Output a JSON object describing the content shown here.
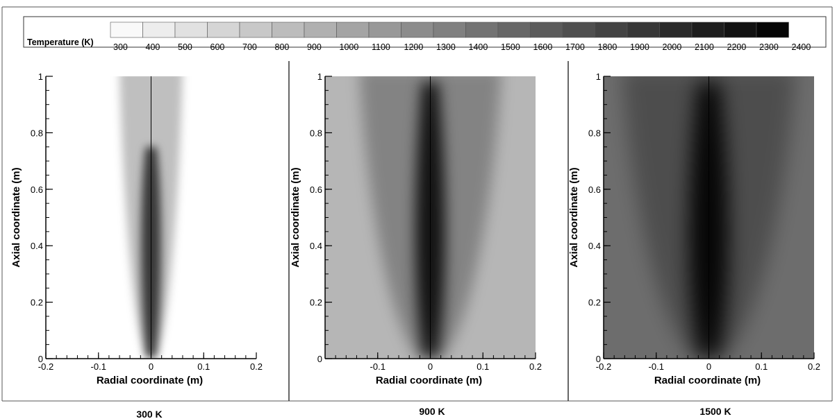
{
  "chart_data": {
    "type": "heatmap",
    "colorbar": {
      "title": "Temperature (K)",
      "range": [
        300,
        2400
      ],
      "ticks": [
        300,
        400,
        500,
        600,
        700,
        800,
        900,
        1000,
        1100,
        1200,
        1300,
        1400,
        1500,
        1600,
        1700,
        1800,
        1900,
        2000,
        2100,
        2200,
        2300,
        2400
      ],
      "colormap": "grayscale, white (low) to black (high)",
      "color_low": "#ffffff",
      "color_high": "#000000"
    },
    "panels": [
      {
        "label": "300 K",
        "xlabel": "Radial coordinate (m)",
        "ylabel": "Axial coordinate (m)",
        "xlim": [
          -0.2,
          0.2
        ],
        "ylim": [
          0,
          1
        ],
        "xticks": [
          -0.2,
          -0.1,
          0,
          0.1,
          0.2
        ],
        "yticks": [
          0,
          0.2,
          0.4,
          0.6,
          0.8,
          1
        ],
        "xtick_labels": [
          "-0.2",
          "-0.1",
          "0",
          "0.1",
          "0.2"
        ],
        "ytick_labels": [
          "0",
          "0.2",
          "0.4",
          "0.6",
          "0.8",
          "1"
        ],
        "ambient_temperature_K": 300,
        "peak_temperature_K": 1900,
        "plume_core_halfwidth_m": 0.02,
        "plume_outer_halfwidth_m": 0.04
      },
      {
        "label": "900 K",
        "xlabel": "Radial coordinate (m)",
        "ylabel": "Axial coordinate (m)",
        "xlim": [
          -0.2,
          0.2
        ],
        "ylim": [
          0,
          1
        ],
        "xticks": [
          -0.1,
          0,
          0.1,
          0.2
        ],
        "yticks": [
          0,
          0.2,
          0.4,
          0.6,
          0.8,
          1
        ],
        "xtick_labels": [
          "-0.1",
          "0",
          "0.1",
          "0.2"
        ],
        "ytick_labels": [
          "0",
          "0.2",
          "0.4",
          "0.6",
          "0.8",
          "1"
        ],
        "ambient_temperature_K": 900,
        "peak_temperature_K": 2300,
        "plume_core_halfwidth_m": 0.03,
        "plume_outer_halfwidth_m": 0.09
      },
      {
        "label": "1500 K",
        "xlabel": "Radial coordinate (m)",
        "ylabel": "Axial coordinate (m)",
        "xlim": [
          -0.2,
          0.2
        ],
        "ylim": [
          0,
          1
        ],
        "xticks": [
          -0.2,
          -0.1,
          0,
          0.1,
          0.2
        ],
        "yticks": [
          0,
          0.2,
          0.4,
          0.6,
          0.8,
          1
        ],
        "xtick_labels": [
          "-0.2",
          "-0.1",
          "0",
          "0.1",
          "0.2"
        ],
        "ytick_labels": [
          "0",
          "0.2",
          "0.4",
          "0.6",
          "0.8",
          "1"
        ],
        "ambient_temperature_K": 1500,
        "peak_temperature_K": 2400,
        "plume_core_halfwidth_m": 0.04,
        "plume_outer_halfwidth_m": 0.11
      }
    ]
  }
}
